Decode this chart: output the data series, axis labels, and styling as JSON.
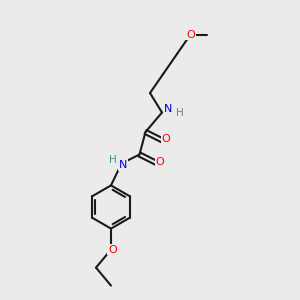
{
  "bg_color": "#ebebeb",
  "atom_color_N": "#0000cd",
  "atom_color_O": "#ff0000",
  "atom_color_H": "#4a9090",
  "bond_color": "#1a1a1a",
  "bond_width": 1.5,
  "figsize": [
    3.0,
    3.0
  ],
  "dpi": 100,
  "xlim": [
    0,
    10
  ],
  "ylim": [
    0,
    10
  ],
  "font_size": 7.5
}
